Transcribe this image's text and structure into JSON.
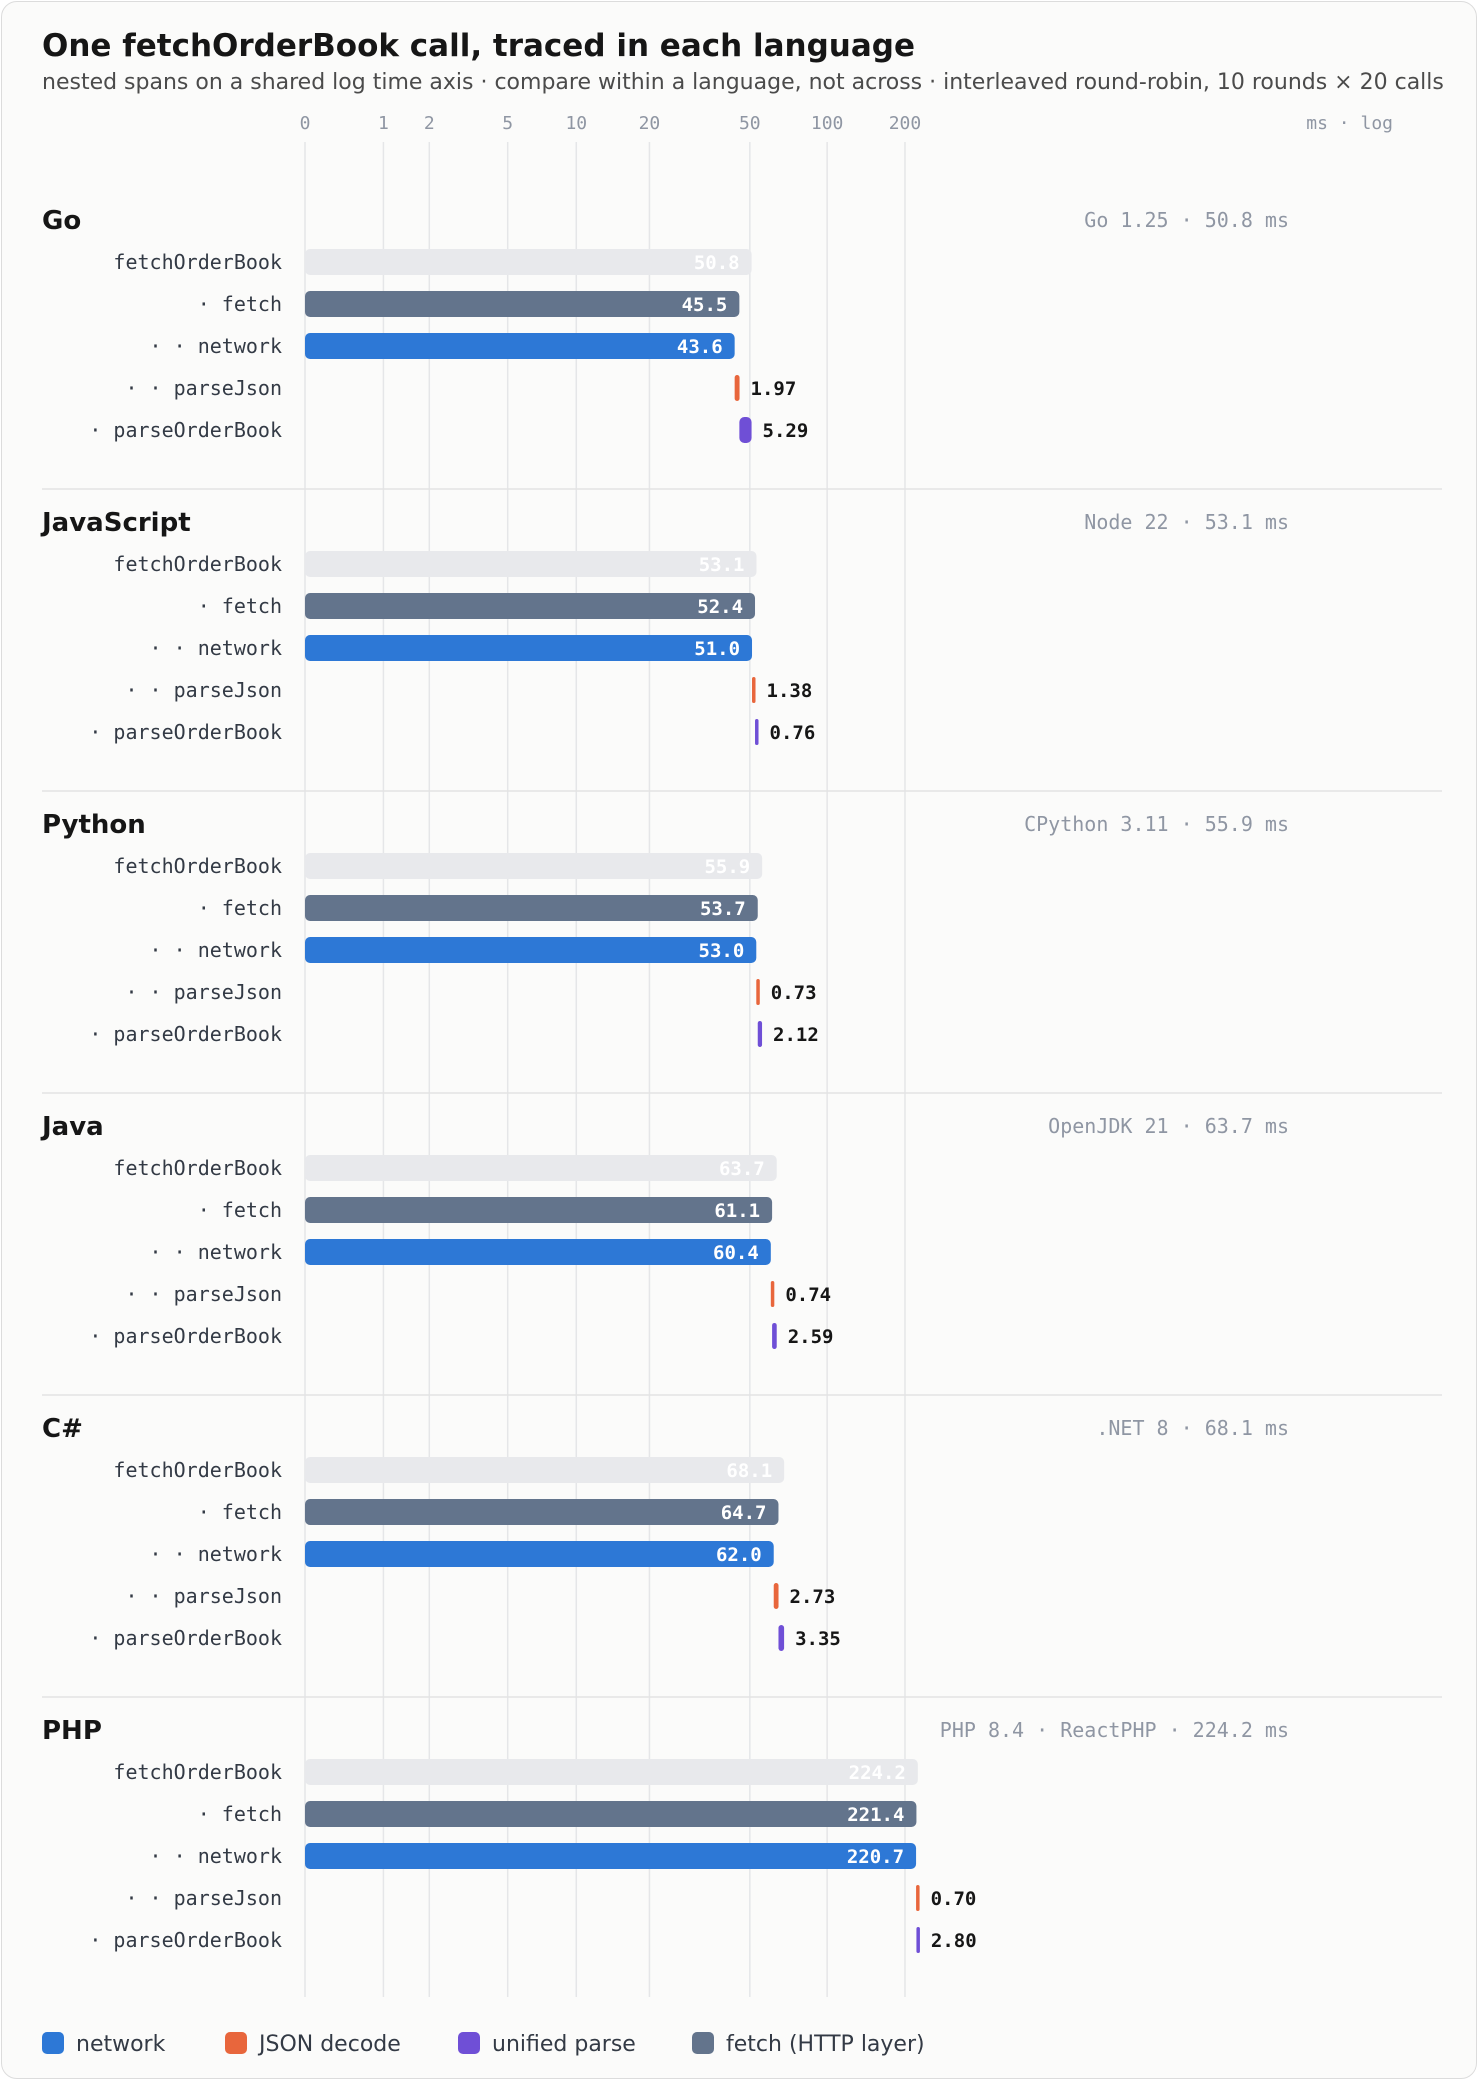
{
  "title": "One fetchOrderBook call, traced in each language",
  "subtitle": "nested spans on a shared log time axis · compare within a language, not across · interleaved round-robin, 10 rounds × 20 calls",
  "axis_unit_label": "ms · log",
  "colors": {
    "network": "#2d78d6",
    "json": "#e8663c",
    "parse": "#6f4fd6",
    "fetch": "#63748c",
    "total": "#e8e9ec",
    "grid": "#e5e6e8",
    "divider": "#e3e3e3"
  },
  "legend": [
    {
      "label": "network",
      "color": "#2d78d6"
    },
    {
      "label": "JSON decode",
      "color": "#e8663c"
    },
    {
      "label": "unified parse",
      "color": "#6f4fd6"
    },
    {
      "label": "fetch (HTTP layer)",
      "color": "#63748c"
    }
  ],
  "chart_data": {
    "type": "bar",
    "xscale": "log",
    "xticks": [
      {
        "value": 0,
        "label": "0"
      },
      {
        "value": 1,
        "label": "1"
      },
      {
        "value": 2,
        "label": "2"
      },
      {
        "value": 5,
        "label": "5"
      },
      {
        "value": 10,
        "label": "10"
      },
      {
        "value": 20,
        "label": "20"
      },
      {
        "value": 50,
        "label": "50"
      },
      {
        "value": 100,
        "label": "100"
      },
      {
        "value": 200,
        "label": "200"
      }
    ],
    "span_labels": {
      "total": "fetchOrderBook",
      "fetch": "· fetch",
      "network": "· · network",
      "json": "· · parseJson",
      "parse": "· parseOrderBook"
    },
    "languages": [
      {
        "name": "Go",
        "runtime": "Go 1.25 · 50.8 ms",
        "spans": {
          "total": 50.8,
          "fetch": 45.5,
          "network": 43.6,
          "json": 1.97,
          "parse": 5.29
        },
        "labels": {
          "total": "50.8",
          "fetch": "45.5",
          "network": "43.6",
          "json": "1.97",
          "parse": "5.29"
        }
      },
      {
        "name": "JavaScript",
        "runtime": "Node 22 · 53.1 ms",
        "spans": {
          "total": 53.1,
          "fetch": 52.4,
          "network": 51.0,
          "json": 1.38,
          "parse": 0.76
        },
        "labels": {
          "total": "53.1",
          "fetch": "52.4",
          "network": "51.0",
          "json": "1.38",
          "parse": "0.76"
        }
      },
      {
        "name": "Python",
        "runtime": "CPython 3.11 · 55.9 ms",
        "spans": {
          "total": 55.9,
          "fetch": 53.7,
          "network": 53.0,
          "json": 0.73,
          "parse": 2.12
        },
        "labels": {
          "total": "55.9",
          "fetch": "53.7",
          "network": "53.0",
          "json": "0.73",
          "parse": "2.12"
        }
      },
      {
        "name": "Java",
        "runtime": "OpenJDK 21 · 63.7 ms",
        "spans": {
          "total": 63.7,
          "fetch": 61.1,
          "network": 60.4,
          "json": 0.74,
          "parse": 2.59
        },
        "labels": {
          "total": "63.7",
          "fetch": "61.1",
          "network": "60.4",
          "json": "0.74",
          "parse": "2.59"
        }
      },
      {
        "name": "C#",
        "runtime": ".NET 8 · 68.1 ms",
        "spans": {
          "total": 68.1,
          "fetch": 64.7,
          "network": 62.0,
          "json": 2.73,
          "parse": 3.35
        },
        "labels": {
          "total": "68.1",
          "fetch": "64.7",
          "network": "62.0",
          "json": "2.73",
          "parse": "3.35"
        }
      },
      {
        "name": "PHP",
        "runtime": "PHP 8.4 · ReactPHP · 224.2 ms",
        "spans": {
          "total": 224.2,
          "fetch": 221.4,
          "network": 220.7,
          "json": 0.7,
          "parse": 2.8
        },
        "labels": {
          "total": "224.2",
          "fetch": "221.4",
          "network": "220.7",
          "json": "0.70",
          "parse": "2.80"
        }
      }
    ]
  }
}
